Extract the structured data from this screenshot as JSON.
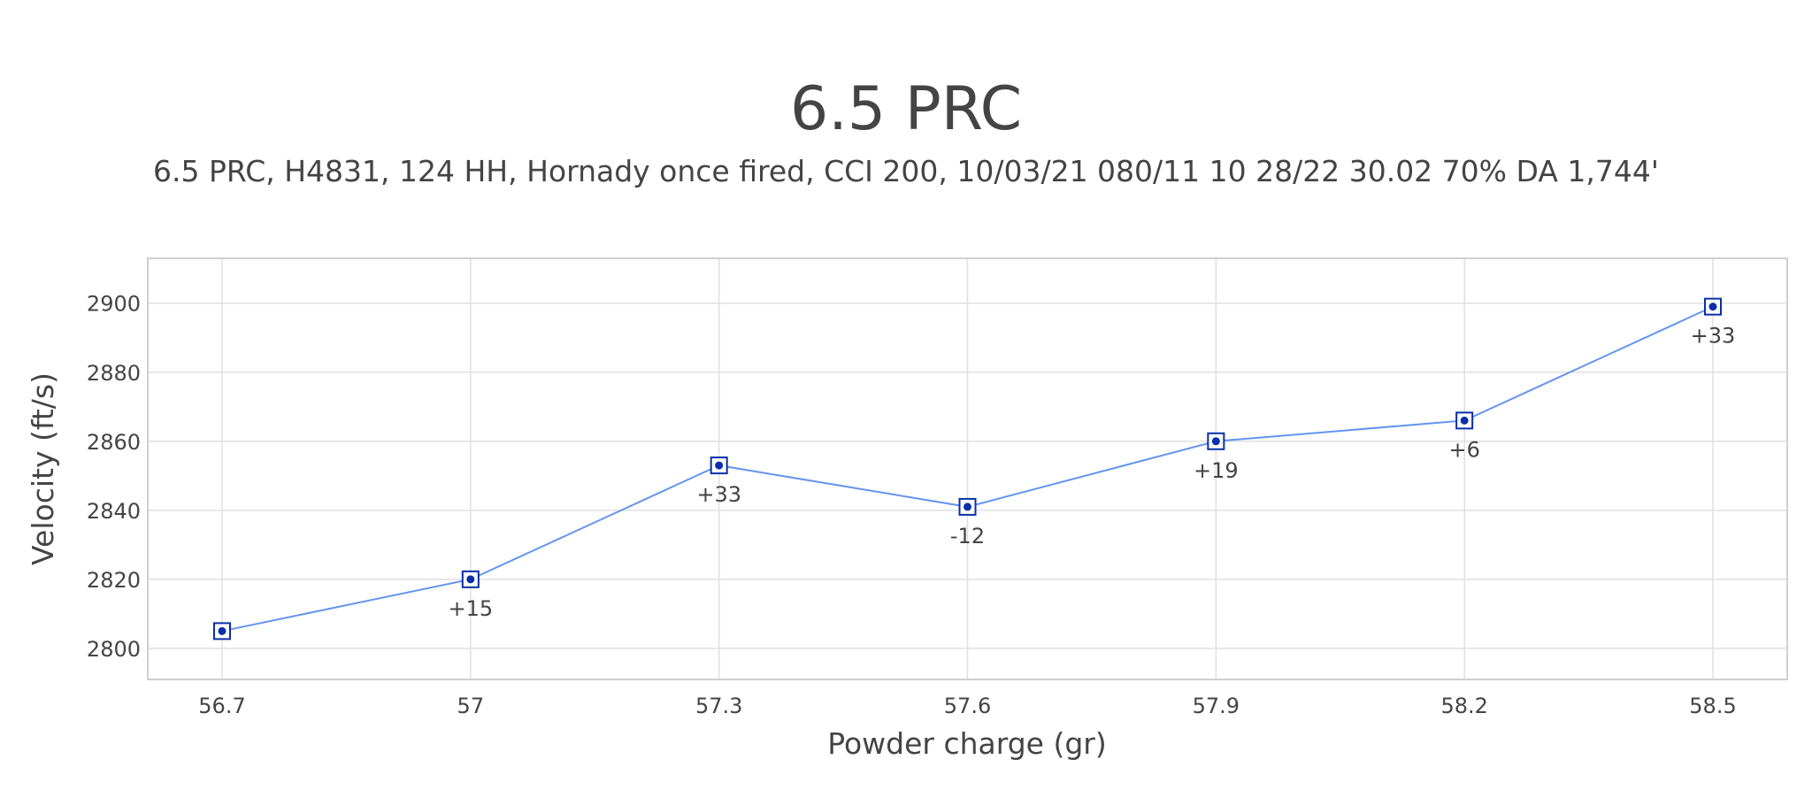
{
  "chart_data": {
    "type": "line",
    "title": "6.5 PRC",
    "subtitle": "6.5 PRC, H4831, 124 HH, Hornady once fired, CCI 200, 10/03/21 080/11 10 28/22 30.02 70% DA 1,744'",
    "xlabel": "Powder charge (gr)",
    "ylabel": "Velocity (ft/s)",
    "x": [
      56.7,
      57,
      57.3,
      57.6,
      57.9,
      58.2,
      58.5
    ],
    "x_tick_labels": [
      "56.7",
      "57",
      "57.3",
      "57.6",
      "57.9",
      "58.2",
      "58.5"
    ],
    "y_ticks": [
      2800,
      2820,
      2840,
      2860,
      2880,
      2900
    ],
    "y_tick_labels": [
      "2800",
      "2820",
      "2840",
      "2860",
      "2880",
      "2900"
    ],
    "ylim": [
      2791,
      2913
    ],
    "grid": true,
    "series": [
      {
        "values": [
          2805,
          2820,
          2853,
          2841,
          2860,
          2866,
          2899
        ],
        "point_labels": [
          "",
          "+15",
          "+33",
          "-12",
          "+19",
          "+6",
          "+33"
        ]
      }
    ],
    "colors": {
      "line": "#6495ed",
      "marker": "#0a2fa8",
      "grid": "#e0e0e0",
      "frame": "#d0d0d0",
      "text": "#444444"
    }
  }
}
